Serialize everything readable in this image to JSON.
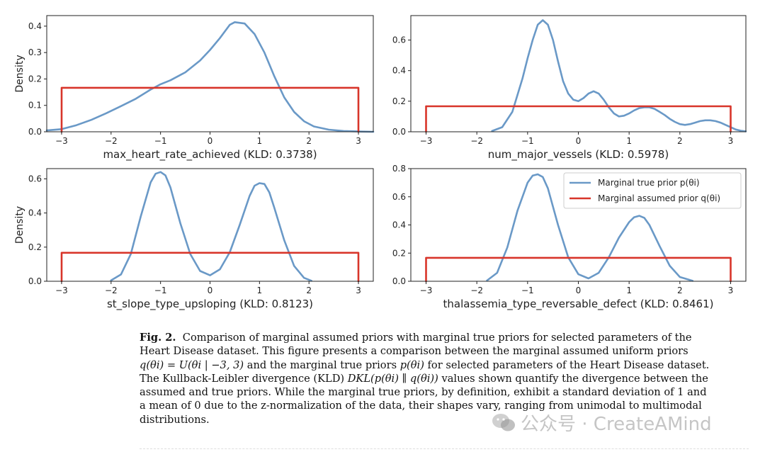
{
  "chart_data": [
    {
      "type": "line",
      "xlabel": "max_heart_rate_achieved (KLD: 0.3738)",
      "ylabel": "Density",
      "xlim": [
        -3.3,
        3.3
      ],
      "ylim": [
        0,
        0.44
      ],
      "xticks": [
        -3,
        -2,
        -1,
        0,
        1,
        2,
        3
      ],
      "yticks": [
        0.0,
        0.1,
        0.2,
        0.3,
        0.4
      ],
      "ytick_labels": [
        "0.0",
        "0.1",
        "0.2",
        "0.3",
        "0.4"
      ],
      "series": [
        {
          "x": [
            -3.3,
            -3.0,
            -2.7,
            -2.4,
            -2.1,
            -1.8,
            -1.5,
            -1.2,
            -1.0,
            -0.8,
            -0.5,
            -0.2,
            0.0,
            0.2,
            0.4,
            0.5,
            0.7,
            0.9,
            1.1,
            1.3,
            1.5,
            1.7,
            1.9,
            2.1,
            2.4,
            2.7,
            3.0,
            3.3
          ],
          "y": [
            0.005,
            0.01,
            0.025,
            0.045,
            0.07,
            0.097,
            0.125,
            0.16,
            0.18,
            0.195,
            0.225,
            0.27,
            0.31,
            0.355,
            0.405,
            0.415,
            0.41,
            0.37,
            0.3,
            0.21,
            0.13,
            0.075,
            0.04,
            0.02,
            0.008,
            0.003,
            0.001,
            0.0
          ]
        },
        {
          "x": [
            -3,
            -3,
            3,
            3
          ],
          "y": [
            0,
            0.1667,
            0.1667,
            0
          ]
        }
      ]
    },
    {
      "type": "line",
      "xlabel": "num_major_vessels (KLD: 0.5978)",
      "ylabel": "",
      "xlim": [
        -3.3,
        3.3
      ],
      "ylim": [
        0,
        0.76
      ],
      "xticks": [
        -3,
        -2,
        -1,
        0,
        1,
        2,
        3
      ],
      "yticks": [
        0.0,
        0.2,
        0.4,
        0.6
      ],
      "ytick_labels": [
        "0.0",
        "0.2",
        "0.4",
        "0.6"
      ],
      "series": [
        {
          "x": [
            -1.7,
            -1.5,
            -1.3,
            -1.1,
            -1.0,
            -0.9,
            -0.8,
            -0.7,
            -0.6,
            -0.5,
            -0.4,
            -0.3,
            -0.2,
            -0.1,
            0.0,
            0.1,
            0.2,
            0.3,
            0.4,
            0.5,
            0.6,
            0.7,
            0.8,
            0.9,
            1.0,
            1.1,
            1.2,
            1.3,
            1.4,
            1.5,
            1.6,
            1.7,
            1.8,
            1.9,
            2.0,
            2.1,
            2.2,
            2.3,
            2.4,
            2.5,
            2.6,
            2.7,
            2.8,
            2.9,
            3.0,
            3.1,
            3.2,
            3.3
          ],
          "y": [
            0.005,
            0.03,
            0.13,
            0.35,
            0.48,
            0.6,
            0.7,
            0.73,
            0.7,
            0.6,
            0.46,
            0.33,
            0.25,
            0.21,
            0.2,
            0.22,
            0.25,
            0.265,
            0.25,
            0.21,
            0.16,
            0.12,
            0.1,
            0.105,
            0.12,
            0.14,
            0.155,
            0.16,
            0.16,
            0.15,
            0.13,
            0.11,
            0.085,
            0.065,
            0.05,
            0.045,
            0.05,
            0.06,
            0.07,
            0.075,
            0.075,
            0.07,
            0.06,
            0.045,
            0.03,
            0.015,
            0.007,
            0.003
          ]
        },
        {
          "x": [
            -3,
            -3,
            3,
            3
          ],
          "y": [
            0,
            0.1667,
            0.1667,
            0
          ]
        }
      ]
    },
    {
      "type": "line",
      "xlabel": "st_slope_type_upsloping (KLD: 0.8123)",
      "ylabel": "Density",
      "xlim": [
        -3.3,
        3.3
      ],
      "ylim": [
        0,
        0.66
      ],
      "xticks": [
        -3,
        -2,
        -1,
        0,
        1,
        2,
        3
      ],
      "yticks": [
        0.0,
        0.2,
        0.4,
        0.6
      ],
      "ytick_labels": [
        "0.0",
        "0.2",
        "0.4",
        "0.6"
      ],
      "series": [
        {
          "x": [
            -2.0,
            -1.8,
            -1.6,
            -1.4,
            -1.2,
            -1.1,
            -1.0,
            -0.9,
            -0.8,
            -0.6,
            -0.4,
            -0.2,
            0.0,
            0.2,
            0.4,
            0.6,
            0.8,
            0.9,
            1.0,
            1.1,
            1.2,
            1.3,
            1.5,
            1.7,
            1.9,
            2.05
          ],
          "y": [
            0.005,
            0.04,
            0.16,
            0.38,
            0.58,
            0.63,
            0.64,
            0.62,
            0.55,
            0.34,
            0.16,
            0.06,
            0.035,
            0.07,
            0.17,
            0.33,
            0.5,
            0.56,
            0.575,
            0.57,
            0.52,
            0.43,
            0.24,
            0.09,
            0.02,
            0.003
          ]
        },
        {
          "x": [
            -3,
            -3,
            3,
            3
          ],
          "y": [
            0,
            0.1667,
            0.1667,
            0
          ]
        }
      ]
    },
    {
      "type": "line",
      "xlabel": "thalassemia_type_reversable_defect (KLD: 0.8461)",
      "ylabel": "",
      "xlim": [
        -3.3,
        3.3
      ],
      "ylim": [
        0,
        0.8
      ],
      "xticks": [
        -3,
        -2,
        -1,
        0,
        1,
        2,
        3
      ],
      "yticks": [
        0.0,
        0.2,
        0.4,
        0.6,
        0.8
      ],
      "ytick_labels": [
        "0.0",
        "0.2",
        "0.4",
        "0.6",
        "0.8"
      ],
      "series": [
        {
          "x": [
            -1.8,
            -1.6,
            -1.4,
            -1.2,
            -1.0,
            -0.9,
            -0.8,
            -0.7,
            -0.6,
            -0.4,
            -0.2,
            0.0,
            0.2,
            0.4,
            0.6,
            0.8,
            1.0,
            1.1,
            1.2,
            1.3,
            1.4,
            1.6,
            1.8,
            2.0,
            2.25
          ],
          "y": [
            0.005,
            0.06,
            0.24,
            0.5,
            0.7,
            0.75,
            0.76,
            0.74,
            0.66,
            0.4,
            0.17,
            0.05,
            0.02,
            0.06,
            0.17,
            0.31,
            0.42,
            0.455,
            0.465,
            0.45,
            0.4,
            0.25,
            0.11,
            0.03,
            0.003
          ]
        },
        {
          "x": [
            -3,
            -3,
            3,
            3
          ],
          "y": [
            0,
            0.1667,
            0.1667,
            0
          ]
        }
      ],
      "legend": {
        "placement": "top-right",
        "entries": [
          {
            "label": "Marginal true prior",
            "math": "p(θi)"
          },
          {
            "label": "Marginal assumed prior",
            "math": "q(θi)"
          }
        ]
      }
    }
  ],
  "colors": {
    "true_prior": "#6a99c7",
    "assumed_prior": "#d8352a"
  },
  "caption": {
    "fig_label": "Fig. 2.",
    "line1": "Comparison of marginal assumed priors with marginal true priors for selected parameters of the",
    "line2": "Heart Disease dataset. This figure presents a comparison between the marginal assumed uniform priors",
    "line3_math": "q(θi) = U(θi | −3, 3)",
    "line3_mid": "and the marginal true priors",
    "line3_math2": "p(θi)",
    "line3_end": "for selected parameters of the Heart Disease dataset.",
    "line4_start": "The Kullback-Leibler divergence (KLD)",
    "line4_math": "DKL(p(θi) ∥ q(θi))",
    "line4_end": "values shown quantify the divergence between the",
    "line5": "assumed and true priors. While the marginal true priors, by definition, exhibit a standard deviation of 1 and",
    "line6": "a mean of 0 due to the z-normalization of the data, their shapes vary, ranging from unimodal to multimodal",
    "line7": "distributions."
  },
  "watermark": {
    "text": "公众号 · CreateAMind"
  }
}
